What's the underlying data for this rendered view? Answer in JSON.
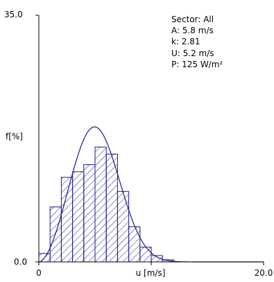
{
  "chart_data": {
    "type": "bar",
    "xlabel": "u [m/s]",
    "ylabel": "f[%]",
    "xlim": [
      0,
      20
    ],
    "ylim": [
      0,
      35
    ],
    "x_ticks": [
      "0",
      "20.0"
    ],
    "y_ticks": [
      "0.0",
      "35.0"
    ],
    "grid": false,
    "bin_width": 1,
    "bins": [
      0.5,
      1.5,
      2.5,
      3.5,
      4.5,
      5.5,
      6.5,
      7.5,
      8.5,
      9.5,
      10.5,
      11.5
    ],
    "values": [
      1.2,
      7.8,
      12.0,
      12.8,
      13.8,
      16.3,
      15.3,
      10.0,
      5.0,
      2.1,
      0.9,
      0.3
    ],
    "curve": {
      "type": "weibull",
      "A": 5.8,
      "k": 2.81
    },
    "annotations": [
      "Sector: All",
      "A: 5.8 m/s",
      "k: 2.81",
      "U: 5.2 m/s",
      "P: 125 W/m²"
    ],
    "colors": {
      "bars": "#1a1a8c",
      "curve": "#1a1a8c",
      "axis": "#000000"
    }
  }
}
